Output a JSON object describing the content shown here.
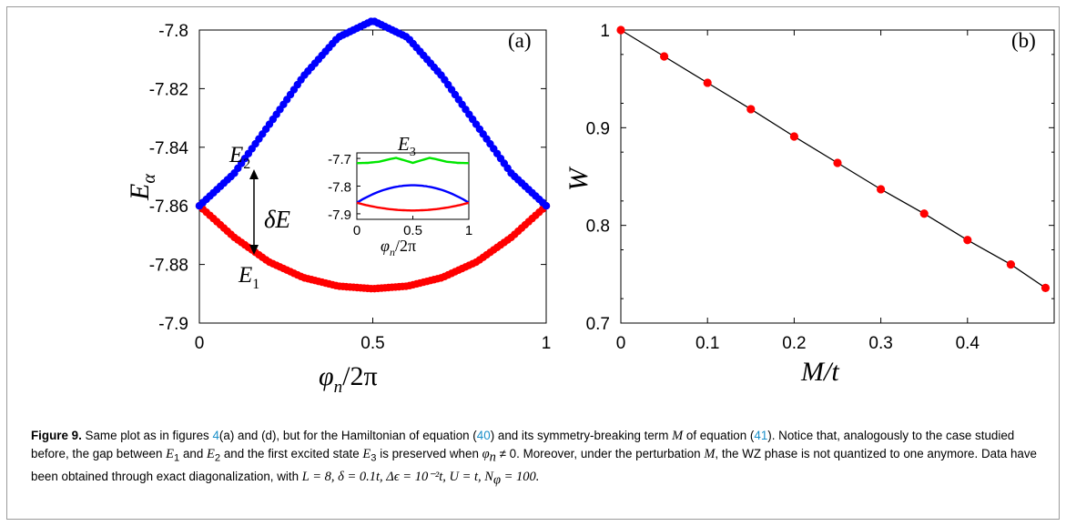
{
  "panels": {
    "a": {
      "tag": "(a)",
      "ylabel": "E",
      "ylabel_sub": "α",
      "xlabel": "φ",
      "xlabel_sub": "n",
      "xlabel_tail": "/2π",
      "curve_labels": {
        "e2": "E",
        "e2_sub": "2",
        "e1": "E",
        "e1_sub": "1",
        "gap": "δE"
      },
      "inset": {
        "label": "E",
        "label_sub": "3",
        "xlabel": "φ",
        "xlabel_sub": "n",
        "xlabel_tail": "/2π"
      }
    },
    "b": {
      "tag": "(b)",
      "ylabel": "W",
      "xlabel": "M/t"
    }
  },
  "chart_data": [
    {
      "type": "scatter",
      "panel": "a",
      "xlim": [
        0,
        1
      ],
      "ylim": [
        -7.9,
        -7.8
      ],
      "xticks": [
        "0",
        "0.5",
        "1"
      ],
      "yticks": [
        "-7.8",
        "-7.82",
        "-7.84",
        "-7.86",
        "-7.88",
        "-7.9"
      ],
      "ytick_values": [
        -7.8,
        -7.82,
        -7.84,
        -7.86,
        -7.88,
        -7.9
      ],
      "n_points": 100,
      "series": [
        {
          "name": "E1",
          "color": "#ff0000",
          "x": [
            0,
            0.1,
            0.2,
            0.3,
            0.4,
            0.5,
            0.6,
            0.7,
            0.8,
            0.9,
            1.0
          ],
          "values": [
            -7.86,
            -7.8707,
            -7.8791,
            -7.8845,
            -7.8874,
            -7.8883,
            -7.8874,
            -7.8845,
            -7.8791,
            -7.8707,
            -7.86
          ]
        },
        {
          "name": "E2",
          "color": "#0000ff",
          "x": [
            0,
            0.1,
            0.2,
            0.3,
            0.4,
            0.5,
            0.6,
            0.7,
            0.8,
            0.9,
            1.0
          ],
          "values": [
            -7.86,
            -7.849,
            -7.8325,
            -7.8158,
            -7.8025,
            -7.7968,
            -7.8025,
            -7.8158,
            -7.8325,
            -7.849,
            -7.86
          ]
        }
      ]
    },
    {
      "type": "line",
      "panel": "a-inset",
      "xlim": [
        0,
        1
      ],
      "ylim": [
        -7.92,
        -7.68
      ],
      "xticks": [
        "0",
        "0.5",
        "1"
      ],
      "yticks": [
        "-7.7",
        "-7.8",
        "-7.9"
      ],
      "ytick_values": [
        -7.7,
        -7.8,
        -7.9
      ],
      "series": [
        {
          "name": "E3",
          "color": "#00e600",
          "x": [
            0,
            0.1,
            0.2,
            0.3,
            0.35,
            0.4,
            0.5,
            0.6,
            0.65,
            0.7,
            0.8,
            0.9,
            1.0
          ],
          "values": [
            -7.717,
            -7.716,
            -7.712,
            -7.702,
            -7.698,
            -7.704,
            -7.716,
            -7.704,
            -7.698,
            -7.702,
            -7.712,
            -7.716,
            -7.717
          ]
        },
        {
          "name": "E2",
          "color": "#0000ff",
          "x": [
            0,
            0.25,
            0.5,
            0.75,
            1.0
          ],
          "values": [
            -7.86,
            -7.815,
            -7.797,
            -7.815,
            -7.86
          ]
        },
        {
          "name": "E1",
          "color": "#ff0000",
          "x": [
            0,
            0.25,
            0.5,
            0.75,
            1.0
          ],
          "values": [
            -7.86,
            -7.8845,
            -7.888,
            -7.8845,
            -7.86
          ]
        }
      ]
    },
    {
      "type": "line",
      "panel": "b",
      "xlim": [
        0,
        0.5
      ],
      "ylim": [
        0.7,
        1.0
      ],
      "xticks": [
        "0",
        "0.1",
        "0.2",
        "0.3",
        "0.4"
      ],
      "xtick_values": [
        0,
        0.1,
        0.2,
        0.3,
        0.4
      ],
      "yticks": [
        "1",
        "0.9",
        "0.8",
        "0.7"
      ],
      "ytick_values": [
        1.0,
        0.9,
        0.8,
        0.7
      ],
      "series": [
        {
          "name": "W",
          "color": "#ff0000",
          "line_color": "#000000",
          "x": [
            0,
            0.05,
            0.1,
            0.15,
            0.2,
            0.25,
            0.3,
            0.35,
            0.4,
            0.45,
            0.49
          ],
          "values": [
            1.0,
            0.973,
            0.946,
            0.919,
            0.891,
            0.864,
            0.837,
            0.812,
            0.785,
            0.76,
            0.736
          ]
        }
      ]
    }
  ],
  "caption": {
    "label": "Figure 9.",
    "t1": " Same plot as in figures ",
    "r1": "4",
    "t2": "(a) and (d), but for the Hamiltonian of equation (",
    "r2": "40",
    "t3": ") and its symmetry-breaking term ",
    "m1": "M",
    "t4": " of equation (",
    "r3": "41",
    "t5": "). Notice that, analogously to the case studied before, the gap between ",
    "m2": "E",
    "s2": "1",
    "t6": " and ",
    "m3": "E",
    "s3": "2",
    "t7": " and the first excited state ",
    "m4": "E",
    "s4": "3",
    "t8": " is preserved when ",
    "m5": "φ",
    "s5": "n",
    "t9": " ≠ 0. Moreover, under the perturbation ",
    "m6": "M",
    "t10": ", the WZ phase is not quantized to one anymore. Data have been obtained through exact diagonalization, with ",
    "eq": "L = 8, δ = 0.1t, Δϵ = 10⁻²t, U = t, N",
    "eq_sub": "φ",
    "eq_tail": " = 100."
  }
}
